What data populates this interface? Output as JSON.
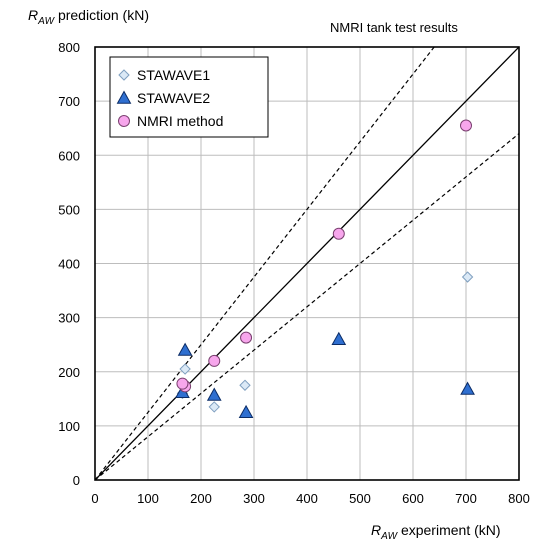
{
  "chart_data": {
    "type": "scatter",
    "annotation": "NMRI tank test results",
    "ylabel_symbol": "R",
    "ylabel_sub": "AW",
    "ylabel_rest": " prediction (kN)",
    "xlabel_symbol": "R",
    "xlabel_sub": "AW",
    "xlabel_rest": " experiment (kN)",
    "xlim": [
      0,
      800
    ],
    "ylim": [
      0,
      800
    ],
    "xticks": [
      "0",
      "100",
      "200",
      "300",
      "400",
      "500",
      "600",
      "700",
      "800"
    ],
    "yticks": [
      "0",
      "100",
      "200",
      "300",
      "400",
      "500",
      "600",
      "700",
      "800"
    ],
    "grid": true,
    "legend_position": "top-left",
    "reference_lines": [
      {
        "style": "solid",
        "slope": 1.0
      },
      {
        "style": "dashed",
        "slope": 1.25
      },
      {
        "style": "dashed",
        "slope": 0.8
      }
    ],
    "series": [
      {
        "name": "STAWAVE1",
        "marker": "diamond",
        "color": "#dbe9f6",
        "points": [
          [
            170,
            205
          ],
          [
            225,
            135
          ],
          [
            283,
            175
          ],
          [
            703,
            375
          ],
          [
            165,
            160
          ]
        ]
      },
      {
        "name": "STAWAVE2",
        "marker": "triangle",
        "color": "#2f6fd0",
        "points": [
          [
            170,
            240
          ],
          [
            225,
            157
          ],
          [
            285,
            125
          ],
          [
            460,
            260
          ],
          [
            703,
            168
          ],
          [
            165,
            162
          ]
        ]
      },
      {
        "name": "NMRI method",
        "marker": "circle",
        "color": "#f7a6ec",
        "points": [
          [
            700,
            655
          ],
          [
            460,
            455
          ],
          [
            285,
            263
          ],
          [
            225,
            220
          ],
          [
            170,
            173
          ],
          [
            165,
            178
          ]
        ]
      }
    ]
  }
}
